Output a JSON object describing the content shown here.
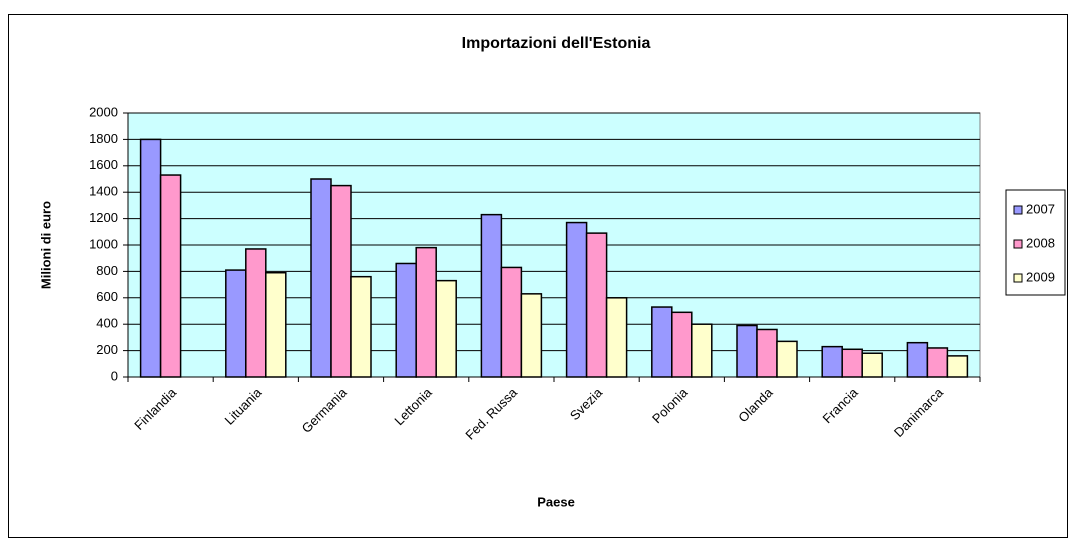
{
  "chart_data": {
    "type": "bar",
    "title": "Importazioni dell'Estonia",
    "x_label": "Paese",
    "y_label": "Milioni di euro",
    "categories": [
      "Finlandia",
      "Lituania",
      "Germania",
      "Lettonia",
      "Fed. Russa",
      "Svezia",
      "Polonia",
      "Olanda",
      "Francia",
      "Danimarca"
    ],
    "series": [
      {
        "name": "2007",
        "color": "#9999ff",
        "values": [
          1800,
          810,
          1500,
          860,
          1230,
          1170,
          530,
          390,
          230,
          260
        ]
      },
      {
        "name": "2008",
        "color": "#ff99cc",
        "values": [
          1530,
          970,
          1450,
          980,
          830,
          1090,
          490,
          360,
          210,
          220
        ]
      },
      {
        "name": "2009",
        "color": "#ffffcc",
        "values": [
          null,
          790,
          760,
          730,
          630,
          600,
          400,
          270,
          180,
          160
        ]
      }
    ],
    "ylim": [
      0,
      2000
    ],
    "yticks": [
      0,
      200,
      400,
      600,
      800,
      1000,
      1200,
      1400,
      1600,
      1800,
      2000
    ],
    "grid": true,
    "legend": "right",
    "plot_background": "#ccffff"
  }
}
